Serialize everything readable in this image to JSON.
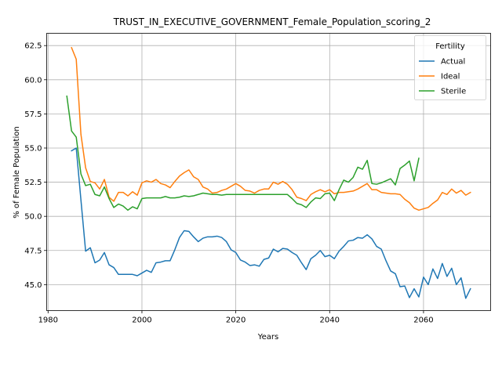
{
  "chart_data": {
    "type": "line",
    "title": "TRUST_IN_EXECUTIVE_GOVERNMENT_Female_Population_scoring_2",
    "xlabel": "Years",
    "ylabel": "% of Female Population",
    "xlim": [
      1979.7,
      2074.3
    ],
    "ylim": [
      43.1,
      63.4
    ],
    "xticks": [
      1980,
      2000,
      2020,
      2040,
      2060
    ],
    "xtick_labels": [
      "1980",
      "2000",
      "2020",
      "2040",
      "2060"
    ],
    "yticks": [
      45.0,
      47.5,
      50.0,
      52.5,
      55.0,
      57.5,
      60.0,
      62.5
    ],
    "ytick_labels": [
      "45.0",
      "47.5",
      "50.0",
      "52.5",
      "55.0",
      "57.5",
      "60.0",
      "62.5"
    ],
    "grid": true,
    "legend": {
      "title": "Fertility",
      "placement": "top-right"
    },
    "series": [
      {
        "name": "Actual",
        "color": "#1f77b4",
        "x": [
          1985,
          1986,
          1987,
          1988,
          1989,
          1990,
          1991,
          1992,
          1993,
          1994,
          1995,
          1996,
          1997,
          1998,
          1999,
          2000,
          2001,
          2002,
          2003,
          2004,
          2005,
          2006,
          2007,
          2008,
          2009,
          2010,
          2011,
          2012,
          2013,
          2014,
          2015,
          2016,
          2017,
          2018,
          2019,
          2020,
          2021,
          2022,
          2023,
          2024,
          2025,
          2026,
          2027,
          2028,
          2029,
          2030,
          2031,
          2032,
          2033,
          2034,
          2035,
          2036,
          2037,
          2038,
          2039,
          2040,
          2041,
          2042,
          2043,
          2044,
          2045,
          2046,
          2047,
          2048,
          2049,
          2050,
          2051,
          2052,
          2053,
          2054,
          2055,
          2056,
          2057,
          2058,
          2059,
          2060,
          2061,
          2062,
          2063,
          2064,
          2065,
          2066,
          2067,
          2068,
          2069,
          2070
        ],
        "y": [
          54.8,
          55.0,
          51.2,
          47.45,
          47.7,
          46.6,
          46.8,
          47.35,
          46.45,
          46.25,
          45.75,
          45.75,
          45.75,
          45.75,
          45.65,
          45.85,
          46.05,
          45.9,
          46.6,
          46.65,
          46.75,
          46.75,
          47.55,
          48.45,
          48.95,
          48.9,
          48.5,
          48.15,
          48.4,
          48.5,
          48.5,
          48.55,
          48.45,
          48.15,
          47.55,
          47.35,
          46.8,
          46.65,
          46.4,
          46.45,
          46.35,
          46.85,
          46.95,
          47.6,
          47.4,
          47.65,
          47.6,
          47.35,
          47.15,
          46.6,
          46.1,
          46.9,
          47.15,
          47.5,
          47.05,
          47.15,
          46.9,
          47.45,
          47.8,
          48.2,
          48.25,
          48.45,
          48.4,
          48.65,
          48.35,
          47.8,
          47.6,
          46.75,
          46.0,
          45.8,
          44.85,
          44.9,
          44.05,
          44.7,
          44.1,
          45.55,
          45.0,
          46.15,
          45.45,
          46.55,
          45.6,
          46.2,
          45.0,
          45.5,
          44.0,
          44.7
        ]
      },
      {
        "name": "Ideal",
        "color": "#ff7f0e",
        "x": [
          1985,
          1986,
          1987,
          1988,
          1989,
          1990,
          1991,
          1992,
          1993,
          1994,
          1995,
          1996,
          1997,
          1998,
          1999,
          2000,
          2001,
          2002,
          2003,
          2004,
          2005,
          2006,
          2007,
          2008,
          2009,
          2010,
          2011,
          2012,
          2013,
          2014,
          2015,
          2016,
          2017,
          2018,
          2019,
          2020,
          2021,
          2022,
          2023,
          2024,
          2025,
          2026,
          2027,
          2028,
          2029,
          2030,
          2031,
          2032,
          2033,
          2034,
          2035,
          2036,
          2037,
          2038,
          2039,
          2040,
          2041,
          2042,
          2043,
          2044,
          2045,
          2046,
          2047,
          2048,
          2049,
          2050,
          2051,
          2052,
          2053,
          2054,
          2055,
          2056,
          2057,
          2058,
          2059,
          2060,
          2061,
          2062,
          2063,
          2064,
          2065,
          2066,
          2067,
          2068,
          2069,
          2070
        ],
        "y": [
          62.35,
          61.5,
          56.0,
          53.55,
          52.55,
          52.45,
          52.0,
          52.7,
          51.4,
          51.1,
          51.75,
          51.75,
          51.5,
          51.8,
          51.55,
          52.45,
          52.6,
          52.5,
          52.7,
          52.4,
          52.3,
          52.1,
          52.55,
          52.95,
          53.2,
          53.4,
          52.9,
          52.7,
          52.15,
          52.0,
          51.7,
          51.75,
          51.9,
          52.0,
          52.2,
          52.4,
          52.2,
          51.9,
          51.85,
          51.7,
          51.9,
          52.0,
          52.0,
          52.5,
          52.35,
          52.55,
          52.35,
          51.95,
          51.4,
          51.3,
          51.15,
          51.6,
          51.8,
          51.95,
          51.8,
          51.95,
          51.65,
          51.75,
          51.75,
          51.8,
          51.85,
          52.0,
          52.2,
          52.4,
          51.95,
          51.95,
          51.75,
          51.7,
          51.65,
          51.65,
          51.6,
          51.25,
          51.0,
          50.6,
          50.45,
          50.55,
          50.65,
          50.95,
          51.2,
          51.75,
          51.6,
          52.0,
          51.7,
          51.9,
          51.55,
          51.75
        ]
      },
      {
        "name": "Sterile",
        "color": "#2ca02c",
        "x": [
          1984,
          1985,
          1986,
          1987,
          1988,
          1989,
          1990,
          1991,
          1992,
          1993,
          1994,
          1995,
          1996,
          1997,
          1998,
          1999,
          2000,
          2001,
          2002,
          2003,
          2004,
          2005,
          2006,
          2007,
          2008,
          2009,
          2010,
          2011,
          2012,
          2013,
          2014,
          2015,
          2016,
          2017,
          2018,
          2019,
          2020,
          2021,
          2022,
          2023,
          2024,
          2025,
          2026,
          2027,
          2028,
          2029,
          2030,
          2031,
          2032,
          2033,
          2034,
          2035,
          2036,
          2037,
          2038,
          2039,
          2040,
          2041,
          2042,
          2043,
          2044,
          2045,
          2046,
          2047,
          2048,
          2049,
          2050,
          2051,
          2052,
          2053,
          2054,
          2055,
          2056,
          2057,
          2058,
          2059
        ],
        "y": [
          58.8,
          56.25,
          55.8,
          53.1,
          52.25,
          52.35,
          51.6,
          51.5,
          52.15,
          51.3,
          50.65,
          50.9,
          50.75,
          50.45,
          50.7,
          50.55,
          51.3,
          51.35,
          51.35,
          51.35,
          51.35,
          51.45,
          51.35,
          51.35,
          51.4,
          51.5,
          51.45,
          51.5,
          51.6,
          51.7,
          51.65,
          51.6,
          51.6,
          51.55,
          51.6,
          51.6,
          51.6,
          51.6,
          51.6,
          51.6,
          51.6,
          51.6,
          51.6,
          51.6,
          51.6,
          51.6,
          51.6,
          51.6,
          51.3,
          50.95,
          50.85,
          50.65,
          51.05,
          51.35,
          51.3,
          51.65,
          51.7,
          51.15,
          51.95,
          52.65,
          52.5,
          52.85,
          53.6,
          53.45,
          54.1,
          52.4,
          52.35,
          52.45,
          52.6,
          52.75,
          52.3,
          53.5,
          53.75,
          54.05,
          52.6,
          54.25
        ]
      }
    ]
  }
}
